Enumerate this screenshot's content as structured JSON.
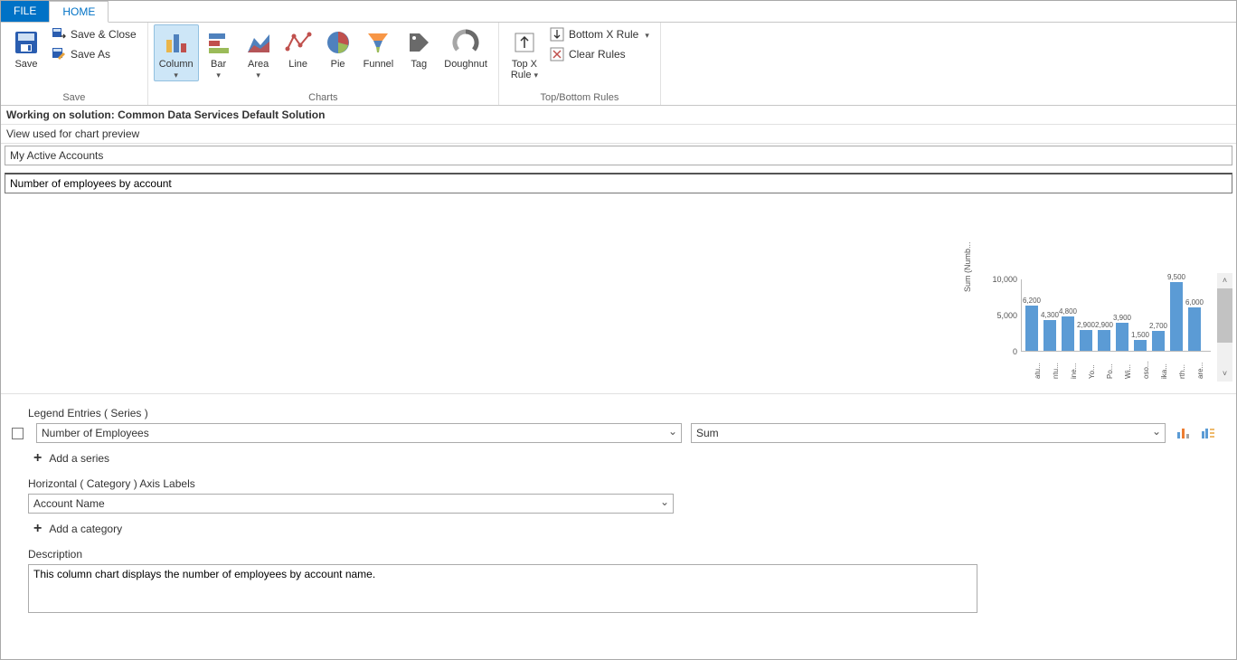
{
  "tabs": {
    "file": "FILE",
    "home": "HOME"
  },
  "ribbon": {
    "save_group_label": "Save",
    "save": "Save",
    "save_close": "Save & Close",
    "save_as": "Save As",
    "charts_group_label": "Charts",
    "chart_types": [
      "Column",
      "Bar",
      "Area",
      "Line",
      "Pie",
      "Funnel",
      "Tag",
      "Doughnut"
    ],
    "chart_icon_colors": {
      "column": [
        "#eab54a",
        "#4f81bd",
        "#c0504d"
      ],
      "bar": [
        "#4f81bd",
        "#c0504d",
        "#9bbb59"
      ],
      "area": [
        "#4f81bd",
        "#c0504d"
      ],
      "line": "#c0504d",
      "pie": [
        "#c0504d",
        "#4f81bd",
        "#9bbb59"
      ],
      "funnel": [
        "#f79646",
        "#4f81bd",
        "#9bbb59"
      ],
      "tag": "#6a6a6a",
      "doughnut": "#6a6a6a"
    },
    "rules_group_label": "Top/Bottom Rules",
    "top_x": "Top X\nRule",
    "bottom_x": "Bottom X Rule",
    "clear_rules": "Clear Rules"
  },
  "context": {
    "solution_label": "Working on solution: Common Data Services Default Solution",
    "view_label": "View used for chart preview",
    "view_name": "My Active Accounts",
    "chart_title": "Number of employees by account"
  },
  "chart": {
    "type": "bar",
    "y_axis_label": "Sum (Numb...",
    "ylim": [
      0,
      10000
    ],
    "yticks": [
      {
        "v": 0,
        "label": "0"
      },
      {
        "v": 5000,
        "label": "5,000"
      },
      {
        "v": 10000,
        "label": "10,000"
      }
    ],
    "bar_color": "#5b9bd5",
    "label_color": "#555555",
    "label_fontsize": 8,
    "categories": [
      "atu...",
      "ntu...",
      "ine...",
      "Yo...",
      "Po...",
      "Wi...",
      "oso...",
      "ika...",
      "rth...",
      "are..."
    ],
    "values": [
      6200,
      4300,
      4800,
      2900,
      2900,
      3900,
      1500,
      2700,
      9500,
      6000
    ],
    "value_labels": [
      "6,200",
      "4,300",
      "4,800",
      "2,900",
      "2,900",
      "3,900",
      "1,500",
      "2,700",
      "9,500",
      "6,000"
    ]
  },
  "editor": {
    "legend_label": "Legend Entries ( Series )",
    "series_field": "Number of Employees",
    "aggregate": "Sum",
    "add_series": "Add a series",
    "axis_label": "Horizontal ( Category ) Axis Labels",
    "axis_field": "Account Name",
    "add_category": "Add a category",
    "description_label": "Description",
    "description_value": "This column chart displays the number of employees by account name."
  }
}
